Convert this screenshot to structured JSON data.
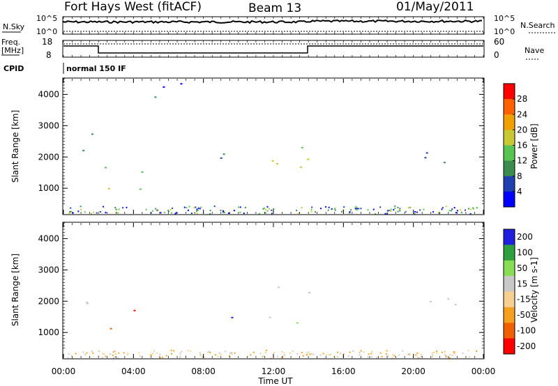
{
  "header": {
    "station": "Fort Hays West (fitACF)",
    "beam": "Beam 13",
    "date": "01/May/2011"
  },
  "summary": {
    "nsky_label": "N.Sky",
    "nsky_top": "10^5",
    "nsky_bottom": "10^0",
    "nsearch_label": "N.Search",
    "nsearch_top": "10^5",
    "nsearch_bottom": "10^0",
    "freq_label_1": "Freq.",
    "freq_label_2": "[MHz]",
    "freq_top": "18",
    "freq_bottom": "8",
    "nave_label": "Nave",
    "nave_top": "60",
    "nave_bottom": "0",
    "cpid_label": "CPID",
    "cpid_value": "normal 150 IF"
  },
  "colors": {
    "power": [
      "#0000ff",
      "#1f3fb0",
      "#3c8c50",
      "#58c454",
      "#c8c832",
      "#f0a000",
      "#ff6000",
      "#ff0000"
    ],
    "velocity": [
      "#1f1fdd",
      "#2fa040",
      "#88dd55",
      "#c8c8c8",
      "#f5d090",
      "#f5a020",
      "#f06000",
      "#ff0000"
    ]
  },
  "chart_data": [
    {
      "type": "heatmap",
      "panel": "power",
      "ylabel": "Slant Range [km]",
      "xlabel": "",
      "xlim": [
        "00:00",
        "24:00"
      ],
      "ylim": [
        180,
        4500
      ],
      "yticks": [
        "1000",
        "2000",
        "3000",
        "4000"
      ],
      "colorbar_label": "Power [dB]",
      "colorbar_ticks": [
        "4",
        "8",
        "12",
        "16",
        "20",
        "24",
        "28"
      ],
      "echo_regions": [
        {
          "t0": 0.1,
          "t1": 1.6,
          "r0": 1800,
          "r1": 3200,
          "value_db": 8
        },
        {
          "t0": 1.8,
          "t1": 5.0,
          "r0": 800,
          "r1": 1800,
          "value_db": 14
        },
        {
          "t0": 4.5,
          "t1": 7.0,
          "r0": 3600,
          "r1": 4500,
          "value_db": 6
        },
        {
          "t0": 6.5,
          "t1": 9.5,
          "r0": 1900,
          "r1": 2400,
          "value_db": 10
        },
        {
          "t0": 11.3,
          "t1": 14.0,
          "r0": 1200,
          "r1": 2800,
          "value_db": 16
        },
        {
          "t0": 18.6,
          "t1": 23.9,
          "r0": 1800,
          "r1": 2300,
          "value_db": 9
        }
      ]
    },
    {
      "type": "heatmap",
      "panel": "velocity",
      "ylabel": "Slant Range [km]",
      "xlabel": "Time UT",
      "xlim": [
        "00:00",
        "24:00"
      ],
      "xticks": [
        "00:00",
        "04:00",
        "08:00",
        "12:00",
        "16:00",
        "20:00",
        "00:00"
      ],
      "ylim": [
        180,
        4500
      ],
      "yticks": [
        "1000",
        "2000",
        "3000",
        "4000"
      ],
      "colorbar_label": "Velocity [m s-1]",
      "colorbar_ticks": [
        "200",
        "100",
        "50",
        "15",
        "-15",
        "-50",
        "-100",
        "-200"
      ],
      "echo_regions": [
        {
          "t0": 0.1,
          "t1": 1.6,
          "r0": 1800,
          "r1": 3200,
          "value_ms": 0
        },
        {
          "t0": 3.3,
          "t1": 5.0,
          "r0": 1100,
          "r1": 1800,
          "value_ms": -180
        },
        {
          "t0": 2.0,
          "t1": 5.0,
          "r0": 800,
          "r1": 1200,
          "value_ms": -80
        },
        {
          "t0": 8.5,
          "t1": 9.7,
          "r0": 1100,
          "r1": 1700,
          "value_ms": 200
        },
        {
          "t0": 11.3,
          "t1": 14.0,
          "r0": 1300,
          "r1": 2600,
          "value_ms": 30
        },
        {
          "t0": 18.6,
          "t1": 23.9,
          "r0": 1800,
          "r1": 2300,
          "value_ms": 0
        }
      ]
    }
  ]
}
